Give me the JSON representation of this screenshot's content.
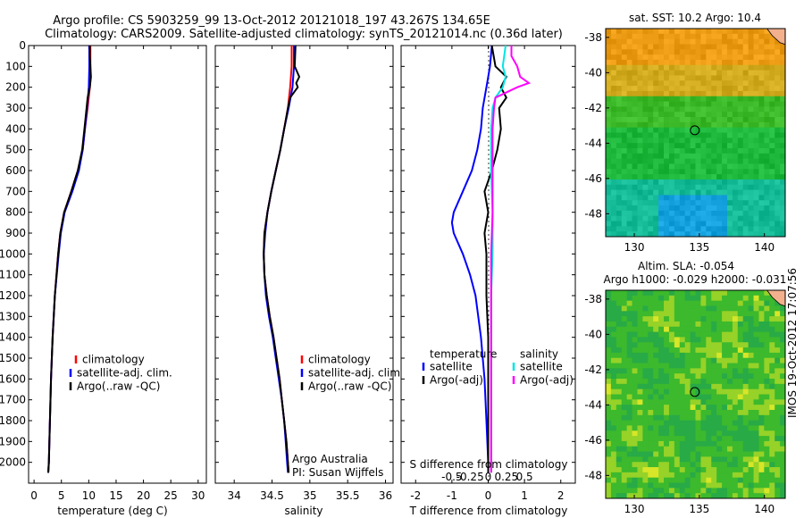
{
  "header": {
    "line1": "Argo profile: CS 5903259_99 13-Oct-2012 20121018_197 43.267S 134.65E",
    "line2": "Climatology: CARS2009. Satellite-adjusted climatology: synTS_20121014.nc (0.36d later)"
  },
  "side_label": "IMOS 19-Oct-2012 17:07:56",
  "colors": {
    "climatology": "#ff0000",
    "satellite": "#0000ff",
    "argo": "#000000",
    "sal_satellite": "#00e5e5",
    "sal_argo": "#ff00ff",
    "land": "#f2b08c"
  },
  "chart_data": [
    {
      "type": "line",
      "xlabel": "temperature (deg C)",
      "ylabel": "",
      "xlim": [
        -1,
        31.5
      ],
      "ylim": [
        2100,
        0
      ],
      "xticks": [
        0,
        5,
        10,
        15,
        20,
        25,
        30
      ],
      "yticks": [
        0,
        100,
        200,
        300,
        400,
        500,
        600,
        700,
        800,
        900,
        1000,
        1100,
        1200,
        1300,
        1400,
        1500,
        1600,
        1700,
        1800,
        1900,
        2000
      ],
      "legend": [
        "climatology",
        "satellite-adj. clim.",
        "Argo(..raw -QC)"
      ],
      "legend_placement": "lower-center",
      "series": [
        {
          "name": "climatology",
          "depth": [
            0,
            100,
            200,
            300,
            400,
            500,
            600,
            700,
            800,
            900,
            1000,
            1200,
            1400,
            1600,
            1800,
            2000,
            2050
          ],
          "values": [
            10.3,
            10.3,
            10.2,
            9.8,
            9.3,
            8.9,
            8.0,
            6.8,
            5.5,
            4.8,
            4.4,
            3.8,
            3.4,
            3.1,
            2.9,
            2.7,
            2.6
          ]
        },
        {
          "name": "satellite-adj. clim.",
          "depth": [
            0,
            100,
            200,
            300,
            400,
            500,
            600,
            700,
            800,
            900,
            1000,
            1200,
            1400,
            1600,
            1800,
            2000,
            2050
          ],
          "values": [
            10.1,
            10.1,
            10.0,
            9.7,
            9.3,
            8.9,
            8.2,
            7.0,
            5.6,
            4.9,
            4.5,
            3.8,
            3.4,
            3.1,
            2.9,
            2.7,
            2.6
          ]
        },
        {
          "name": "Argo(..raw -QC)",
          "depth": [
            0,
            50,
            100,
            150,
            200,
            250,
            300,
            400,
            500,
            600,
            700,
            800,
            900,
            1000,
            1200,
            1400,
            1600,
            1800,
            2000,
            2050
          ],
          "values": [
            10.2,
            10.2,
            10.3,
            10.4,
            10.2,
            9.8,
            9.6,
            9.2,
            8.8,
            8.0,
            6.8,
            5.5,
            4.8,
            4.4,
            3.8,
            3.4,
            3.1,
            2.9,
            2.7,
            2.6
          ]
        }
      ]
    },
    {
      "type": "line",
      "xlabel": "salinity",
      "ylabel": "",
      "xlim": [
        33.75,
        36.1
      ],
      "ylim": [
        2100,
        0
      ],
      "xticks": [
        34,
        34.5,
        35,
        35.5,
        36
      ],
      "xtick_labels": [
        "34",
        "34.5",
        "35",
        "35.5",
        "36"
      ],
      "legend": [
        "climatology",
        "satellite-adj. clim.",
        "Argo(..raw -QC)"
      ],
      "legend_placement": "lower-right",
      "annotation": [
        "Argo Australia",
        "PI: Susan Wijffels"
      ],
      "series": [
        {
          "name": "climatology",
          "depth": [
            0,
            100,
            200,
            300,
            400,
            500,
            600,
            700,
            800,
            900,
            1000,
            1100,
            1200,
            1300,
            1400,
            1500,
            1600,
            1700,
            1800,
            1900,
            2000,
            2050
          ],
          "values": [
            34.76,
            34.76,
            34.74,
            34.71,
            34.66,
            34.61,
            34.55,
            34.49,
            34.44,
            34.4,
            34.39,
            34.4,
            34.43,
            34.47,
            34.52,
            34.56,
            34.6,
            34.63,
            34.66,
            34.69,
            34.71,
            34.72
          ]
        },
        {
          "name": "satellite-adj. clim.",
          "depth": [
            0,
            100,
            200,
            300,
            400,
            500,
            600,
            700,
            800,
            900,
            1000,
            1100,
            1200,
            1300,
            1400,
            1500,
            1600,
            1700,
            1800,
            1900,
            2000,
            2050
          ],
          "values": [
            34.79,
            34.79,
            34.77,
            34.72,
            34.66,
            34.61,
            34.55,
            34.49,
            34.44,
            34.41,
            34.39,
            34.4,
            34.42,
            34.46,
            34.51,
            34.55,
            34.59,
            34.63,
            34.66,
            34.68,
            34.7,
            34.71
          ]
        },
        {
          "name": "Argo(..raw -QC)",
          "depth": [
            0,
            100,
            150,
            180,
            200,
            220,
            250,
            300,
            400,
            500,
            600,
            700,
            800,
            900,
            1000,
            1100,
            1200,
            1300,
            1400,
            1500,
            1600,
            1700,
            1800,
            1900,
            2000,
            2050
          ],
          "values": [
            34.81,
            34.8,
            34.86,
            34.82,
            34.84,
            34.8,
            34.74,
            34.71,
            34.66,
            34.61,
            34.55,
            34.49,
            34.44,
            34.4,
            34.39,
            34.4,
            34.43,
            34.47,
            34.52,
            34.56,
            34.6,
            34.63,
            34.66,
            34.69,
            34.71,
            34.72
          ]
        }
      ]
    },
    {
      "type": "line",
      "xlabel": "T difference from climatology",
      "xlabel_top": "S difference from climatology",
      "xlim": [
        -2.4,
        2.4
      ],
      "ylim": [
        2100,
        0
      ],
      "xticks": [
        -2,
        -1,
        0,
        1,
        2
      ],
      "xticks_top": [
        -0.5,
        -0.25,
        0,
        0.25,
        0.5
      ],
      "legend": [
        "temperature",
        "satellite",
        "Argo(-adj)",
        "salinity",
        "satellite",
        "Argo(-adj)"
      ],
      "legend_placement": "lower-center",
      "series": [
        {
          "name": "satellite",
          "group": "temperature",
          "depth": [
            0,
            100,
            200,
            300,
            400,
            500,
            600,
            700,
            800,
            850,
            900,
            1000,
            1100,
            1200,
            1400,
            1600,
            1800,
            2000,
            2050
          ],
          "values": [
            0.1,
            0.05,
            -0.05,
            -0.15,
            -0.2,
            -0.3,
            -0.45,
            -0.7,
            -0.95,
            -1.0,
            -0.95,
            -0.7,
            -0.5,
            -0.35,
            -0.2,
            -0.1,
            -0.05,
            0,
            0
          ]
        },
        {
          "name": "Argo(-adj)",
          "group": "temperature",
          "depth": [
            0,
            100,
            150,
            200,
            250,
            300,
            400,
            500,
            600,
            700,
            800,
            900,
            1000,
            1200,
            1400,
            1600,
            1800,
            2000,
            2050
          ],
          "values": [
            0.1,
            0.2,
            0.5,
            0.35,
            0.5,
            0.3,
            0.35,
            0.25,
            0.1,
            -0.1,
            0,
            -0.1,
            -0.05,
            -0.05,
            0,
            0,
            0,
            0,
            0
          ]
        },
        {
          "name": "satellite",
          "group": "salinity",
          "depth": [
            0,
            50,
            100,
            150,
            200,
            250,
            300,
            400,
            600,
            800,
            1000,
            1200,
            1500,
            1800,
            2000,
            2050
          ],
          "values": [
            0.12,
            0.11,
            0.1,
            0.12,
            0.1,
            0.05,
            0.03,
            0.02,
            0.02,
            0.03,
            0.03,
            0.02,
            0.02,
            0.02,
            0.02,
            0.02
          ]
        },
        {
          "name": "Argo(-adj)",
          "group": "salinity",
          "depth": [
            0,
            50,
            100,
            150,
            180,
            200,
            250,
            300,
            400,
            600,
            800,
            1000,
            1200,
            1500,
            1800,
            2000,
            2050
          ],
          "values": [
            0.16,
            0.16,
            0.2,
            0.22,
            0.28,
            0.2,
            0.05,
            0.04,
            0.03,
            0.03,
            0.03,
            0.02,
            0.02,
            0.02,
            0.02,
            0.02,
            0.02
          ]
        }
      ]
    },
    {
      "type": "heatmap",
      "title": "sat. SST: 10.2  Argo: 10.4",
      "xlim": [
        127.8,
        141.6
      ],
      "ylim": [
        -49.3,
        -37.5
      ],
      "xticks": [
        130,
        135,
        140
      ],
      "yticks": [
        -38,
        -40,
        -42,
        -44,
        -46,
        -48
      ],
      "marker": {
        "lon": 134.65,
        "lat": -43.267
      },
      "field": "sea surface temperature"
    },
    {
      "type": "heatmap",
      "title": [
        "Altim. SLA: -0.054",
        "Argo h1000: -0.029 h2000: -0.031"
      ],
      "xlim": [
        127.8,
        141.6
      ],
      "ylim": [
        -49.3,
        -37.5
      ],
      "xticks": [
        130,
        135,
        140
      ],
      "yticks": [
        -38,
        -40,
        -42,
        -44,
        -46,
        -48
      ],
      "marker": {
        "lon": 134.65,
        "lat": -43.267
      },
      "field": "sea level anomaly"
    }
  ]
}
